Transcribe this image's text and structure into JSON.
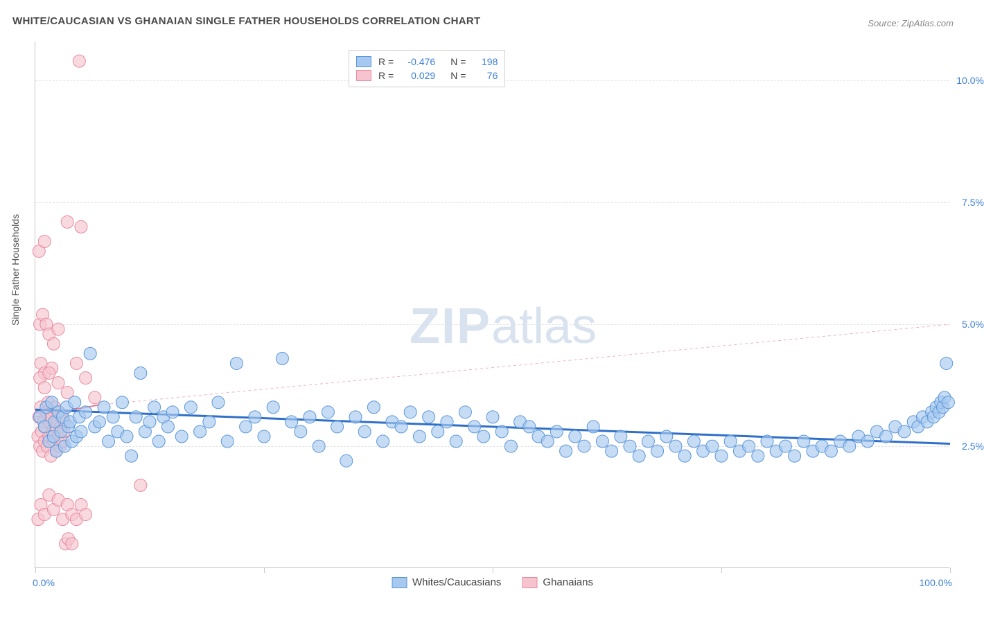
{
  "title": "WHITE/CAUCASIAN VS GHANAIAN SINGLE FATHER HOUSEHOLDS CORRELATION CHART",
  "source_label": "Source:",
  "source_name": "ZipAtlas.com",
  "y_axis_label": "Single Father Households",
  "watermark_zip": "ZIP",
  "watermark_atlas": "atlas",
  "chart": {
    "type": "scatter",
    "background_color": "#ffffff",
    "grid_color": "#e3e3e3",
    "axis_color": "#c8c8c8",
    "text_color": "#4a4a4a",
    "value_color": "#3a7fd5",
    "xlim": [
      0,
      100
    ],
    "ylim": [
      0,
      10.8
    ],
    "y_ticks": [
      2.5,
      5.0,
      7.5,
      10.0
    ],
    "y_tick_labels": [
      "2.5%",
      "5.0%",
      "7.5%",
      "10.0%"
    ],
    "x_ticks": [
      0,
      25,
      50,
      75,
      100
    ],
    "x_range_start": "0.0%",
    "x_range_end": "100.0%",
    "series": [
      {
        "name": "Whites/Caucasians",
        "color_fill": "#a8c9ef",
        "color_stroke": "#5a96d8",
        "opacity": 0.65,
        "marker_radius": 9,
        "R": "-0.476",
        "N": "198",
        "trend": {
          "x1": 0,
          "y1": 3.25,
          "x2": 100,
          "y2": 2.55,
          "stroke": "#2f6fc9",
          "width": 3,
          "dash": "none"
        },
        "trend_ext": null,
        "points": [
          [
            0.5,
            3.1
          ],
          [
            1,
            2.9
          ],
          [
            1.2,
            3.3
          ],
          [
            1.5,
            2.6
          ],
          [
            1.8,
            3.4
          ],
          [
            2,
            2.7
          ],
          [
            2.1,
            3.0
          ],
          [
            2.3,
            2.4
          ],
          [
            2.5,
            3.2
          ],
          [
            2.8,
            2.8
          ],
          [
            3,
            3.1
          ],
          [
            3.2,
            2.5
          ],
          [
            3.4,
            3.3
          ],
          [
            3.6,
            2.9
          ],
          [
            3.8,
            3.0
          ],
          [
            4,
            2.6
          ],
          [
            4.3,
            3.4
          ],
          [
            4.5,
            2.7
          ],
          [
            4.8,
            3.1
          ],
          [
            5,
            2.8
          ],
          [
            5.5,
            3.2
          ],
          [
            6,
            4.4
          ],
          [
            6.5,
            2.9
          ],
          [
            7,
            3.0
          ],
          [
            7.5,
            3.3
          ],
          [
            8,
            2.6
          ],
          [
            8.5,
            3.1
          ],
          [
            9,
            2.8
          ],
          [
            9.5,
            3.4
          ],
          [
            10,
            2.7
          ],
          [
            10.5,
            2.3
          ],
          [
            11,
            3.1
          ],
          [
            11.5,
            4.0
          ],
          [
            12,
            2.8
          ],
          [
            12.5,
            3.0
          ],
          [
            13,
            3.3
          ],
          [
            13.5,
            2.6
          ],
          [
            14,
            3.1
          ],
          [
            14.5,
            2.9
          ],
          [
            15,
            3.2
          ],
          [
            16,
            2.7
          ],
          [
            17,
            3.3
          ],
          [
            18,
            2.8
          ],
          [
            19,
            3.0
          ],
          [
            20,
            3.4
          ],
          [
            21,
            2.6
          ],
          [
            22,
            4.2
          ],
          [
            23,
            2.9
          ],
          [
            24,
            3.1
          ],
          [
            25,
            2.7
          ],
          [
            26,
            3.3
          ],
          [
            27,
            4.3
          ],
          [
            28,
            3.0
          ],
          [
            29,
            2.8
          ],
          [
            30,
            3.1
          ],
          [
            31,
            2.5
          ],
          [
            32,
            3.2
          ],
          [
            33,
            2.9
          ],
          [
            34,
            2.2
          ],
          [
            35,
            3.1
          ],
          [
            36,
            2.8
          ],
          [
            37,
            3.3
          ],
          [
            38,
            2.6
          ],
          [
            39,
            3.0
          ],
          [
            40,
            2.9
          ],
          [
            41,
            3.2
          ],
          [
            42,
            2.7
          ],
          [
            43,
            3.1
          ],
          [
            44,
            2.8
          ],
          [
            45,
            3.0
          ],
          [
            46,
            2.6
          ],
          [
            47,
            3.2
          ],
          [
            48,
            2.9
          ],
          [
            49,
            2.7
          ],
          [
            50,
            3.1
          ],
          [
            51,
            2.8
          ],
          [
            52,
            2.5
          ],
          [
            53,
            3.0
          ],
          [
            54,
            2.9
          ],
          [
            55,
            2.7
          ],
          [
            56,
            2.6
          ],
          [
            57,
            2.8
          ],
          [
            58,
            2.4
          ],
          [
            59,
            2.7
          ],
          [
            60,
            2.5
          ],
          [
            61,
            2.9
          ],
          [
            62,
            2.6
          ],
          [
            63,
            2.4
          ],
          [
            64,
            2.7
          ],
          [
            65,
            2.5
          ],
          [
            66,
            2.3
          ],
          [
            67,
            2.6
          ],
          [
            68,
            2.4
          ],
          [
            69,
            2.7
          ],
          [
            70,
            2.5
          ],
          [
            71,
            2.3
          ],
          [
            72,
            2.6
          ],
          [
            73,
            2.4
          ],
          [
            74,
            2.5
          ],
          [
            75,
            2.3
          ],
          [
            76,
            2.6
          ],
          [
            77,
            2.4
          ],
          [
            78,
            2.5
          ],
          [
            79,
            2.3
          ],
          [
            80,
            2.6
          ],
          [
            81,
            2.4
          ],
          [
            82,
            2.5
          ],
          [
            83,
            2.3
          ],
          [
            84,
            2.6
          ],
          [
            85,
            2.4
          ],
          [
            86,
            2.5
          ],
          [
            87,
            2.4
          ],
          [
            88,
            2.6
          ],
          [
            89,
            2.5
          ],
          [
            90,
            2.7
          ],
          [
            91,
            2.6
          ],
          [
            92,
            2.8
          ],
          [
            93,
            2.7
          ],
          [
            94,
            2.9
          ],
          [
            95,
            2.8
          ],
          [
            96,
            3.0
          ],
          [
            96.5,
            2.9
          ],
          [
            97,
            3.1
          ],
          [
            97.5,
            3.0
          ],
          [
            98,
            3.2
          ],
          [
            98.2,
            3.1
          ],
          [
            98.5,
            3.3
          ],
          [
            98.8,
            3.2
          ],
          [
            99,
            3.4
          ],
          [
            99.2,
            3.3
          ],
          [
            99.4,
            3.5
          ],
          [
            99.6,
            4.2
          ],
          [
            99.8,
            3.4
          ]
        ]
      },
      {
        "name": "Ghanaians",
        "color_fill": "#f6c4cf",
        "color_stroke": "#e88aa0",
        "opacity": 0.65,
        "marker_radius": 9,
        "R": "0.029",
        "N": "76",
        "trend": {
          "x1": 0,
          "y1": 3.1,
          "x2": 7,
          "y2": 3.35,
          "stroke": "#e47a92",
          "width": 2,
          "dash": "none"
        },
        "trend_ext": {
          "x1": 7,
          "y1": 3.35,
          "x2": 100,
          "y2": 5.0,
          "stroke": "#efb1be",
          "width": 1,
          "dash": "4,4"
        },
        "points": [
          [
            0.3,
            2.7
          ],
          [
            0.4,
            3.1
          ],
          [
            0.5,
            2.5
          ],
          [
            0.6,
            3.3
          ],
          [
            0.7,
            2.8
          ],
          [
            0.8,
            2.4
          ],
          [
            0.9,
            3.0
          ],
          [
            1.0,
            2.6
          ],
          [
            1.1,
            2.9
          ],
          [
            1.2,
            3.2
          ],
          [
            1.3,
            2.5
          ],
          [
            1.4,
            3.4
          ],
          [
            1.5,
            2.7
          ],
          [
            1.6,
            3.0
          ],
          [
            1.7,
            2.3
          ],
          [
            1.8,
            3.1
          ],
          [
            1.9,
            2.8
          ],
          [
            2.0,
            2.6
          ],
          [
            2.1,
            3.3
          ],
          [
            2.2,
            2.9
          ],
          [
            2.3,
            2.4
          ],
          [
            2.4,
            3.0
          ],
          [
            2.5,
            2.7
          ],
          [
            2.6,
            3.2
          ],
          [
            2.7,
            2.5
          ],
          [
            2.8,
            2.9
          ],
          [
            2.9,
            3.1
          ],
          [
            3.0,
            2.6
          ],
          [
            3.1,
            2.8
          ],
          [
            3.2,
            3.0
          ],
          [
            0.5,
            5.0
          ],
          [
            0.8,
            5.2
          ],
          [
            1.2,
            5.0
          ],
          [
            1.5,
            4.8
          ],
          [
            2.0,
            4.6
          ],
          [
            2.5,
            4.9
          ],
          [
            0.6,
            4.2
          ],
          [
            1.0,
            4.0
          ],
          [
            1.8,
            4.1
          ],
          [
            0.4,
            6.5
          ],
          [
            1.0,
            6.7
          ],
          [
            3.5,
            7.1
          ],
          [
            5.0,
            7.0
          ],
          [
            4.8,
            10.4
          ],
          [
            0.3,
            1.0
          ],
          [
            0.6,
            1.3
          ],
          [
            1.0,
            1.1
          ],
          [
            1.5,
            1.5
          ],
          [
            2.0,
            1.2
          ],
          [
            2.5,
            1.4
          ],
          [
            3.0,
            1.0
          ],
          [
            3.5,
            1.3
          ],
          [
            4.0,
            1.1
          ],
          [
            4.5,
            1.0
          ],
          [
            5.0,
            1.3
          ],
          [
            5.5,
            1.1
          ],
          [
            3.3,
            0.5
          ],
          [
            3.6,
            0.6
          ],
          [
            4.0,
            0.5
          ],
          [
            11.5,
            1.7
          ],
          [
            0.5,
            3.9
          ],
          [
            1.0,
            3.7
          ],
          [
            1.5,
            4.0
          ],
          [
            2.5,
            3.8
          ],
          [
            3.5,
            3.6
          ],
          [
            4.5,
            4.2
          ],
          [
            5.5,
            3.9
          ],
          [
            6.5,
            3.5
          ]
        ]
      }
    ]
  }
}
